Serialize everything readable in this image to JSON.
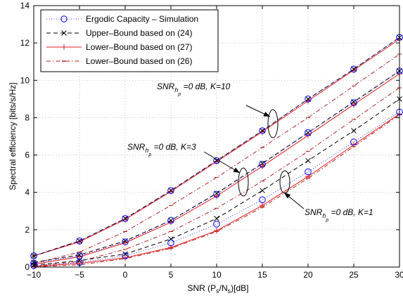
{
  "chart_data": {
    "type": "line",
    "title": "",
    "xlabel": {
      "main": "SNR (P",
      "sub1": "s",
      "mid": "/N",
      "sub2": "s",
      "end": ")[dB]"
    },
    "ylabel": "Spectral efficiency [bits/s/Hz]",
    "xlim": [
      -10,
      30
    ],
    "ylim": [
      0,
      14
    ],
    "grid": true,
    "legend_position": "top-left",
    "x": [
      -10,
      -5,
      0,
      5,
      10,
      15,
      20,
      25,
      30
    ],
    "x_ticks": [
      "−10",
      "−5",
      "0",
      "5",
      "10",
      "15",
      "20",
      "25",
      "30"
    ],
    "y_ticks": [
      "0",
      "2",
      "4",
      "6",
      "8",
      "10",
      "12",
      "14"
    ],
    "x_tick_values": [
      -10,
      -5,
      0,
      5,
      10,
      15,
      20,
      25,
      30
    ],
    "y_tick_values": [
      0,
      2,
      4,
      6,
      8,
      10,
      12,
      14
    ],
    "legend": [
      {
        "key": "sim",
        "label": "Ergodic Capacity – Simulation"
      },
      {
        "key": "ub24",
        "label": "Upper–Bound based on (24)"
      },
      {
        "key": "lb27",
        "label": "Lower–Bound based on (27)"
      },
      {
        "key": "lb26",
        "label": "Lower–Bound based on (26)"
      }
    ],
    "groups": [
      {
        "K": 10,
        "sim": [
          0.6,
          1.4,
          2.6,
          4.1,
          5.7,
          7.3,
          9.0,
          10.6,
          12.3
        ],
        "ub24": [
          0.6,
          1.4,
          2.6,
          4.1,
          5.7,
          7.3,
          9.0,
          10.6,
          12.3
        ],
        "lb27": [
          0.6,
          1.35,
          2.55,
          4.05,
          5.65,
          7.25,
          8.9,
          10.55,
          12.2
        ],
        "lb26": [
          0.2,
          0.8,
          1.9,
          3.3,
          4.8,
          6.4,
          8.0,
          9.7,
          11.4
        ]
      },
      {
        "K": 3,
        "sim": [
          0.2,
          0.6,
          1.35,
          2.5,
          3.9,
          5.5,
          7.2,
          8.8,
          10.5
        ],
        "ub24": [
          0.25,
          0.65,
          1.4,
          2.5,
          3.95,
          5.55,
          7.2,
          8.85,
          10.5
        ],
        "lb27": [
          0.15,
          0.55,
          1.3,
          2.4,
          3.8,
          5.4,
          7.05,
          8.7,
          10.35
        ],
        "lb26": [
          0.05,
          0.3,
          0.95,
          1.9,
          3.15,
          4.6,
          6.2,
          7.9,
          9.6
        ]
      },
      {
        "K": 1,
        "sim": [
          0.08,
          0.25,
          0.6,
          1.3,
          2.3,
          3.6,
          5.1,
          6.7,
          8.3
        ],
        "ub24": [
          0.1,
          0.35,
          0.7,
          1.5,
          2.6,
          4.1,
          5.7,
          7.3,
          9.0
        ],
        "lb27": [
          0.03,
          0.2,
          0.5,
          1.05,
          1.95,
          3.3,
          4.85,
          6.55,
          8.2
        ],
        "lb26": [
          0.02,
          0.12,
          0.45,
          1.0,
          1.9,
          3.2,
          4.75,
          6.45,
          8.15
        ]
      }
    ],
    "annotations": [
      {
        "id": "k10",
        "snr": "SNR",
        "sub": "h",
        "subsub": "p",
        "rest": " =0 dB, K=10"
      },
      {
        "id": "k3",
        "snr": "SNR",
        "sub": "h",
        "subsub": "p",
        "rest": " =0 dB, K=3"
      },
      {
        "id": "k1",
        "snr": "SNR",
        "sub": "h",
        "subsub": "p",
        "rest": " =0 dB, K=1"
      }
    ]
  },
  "colors": {
    "sim": "#0000ff",
    "ub24": "#000000",
    "lb27": "#e31a1c",
    "lb26": "#b22222",
    "grid": "#b0b0b0"
  }
}
